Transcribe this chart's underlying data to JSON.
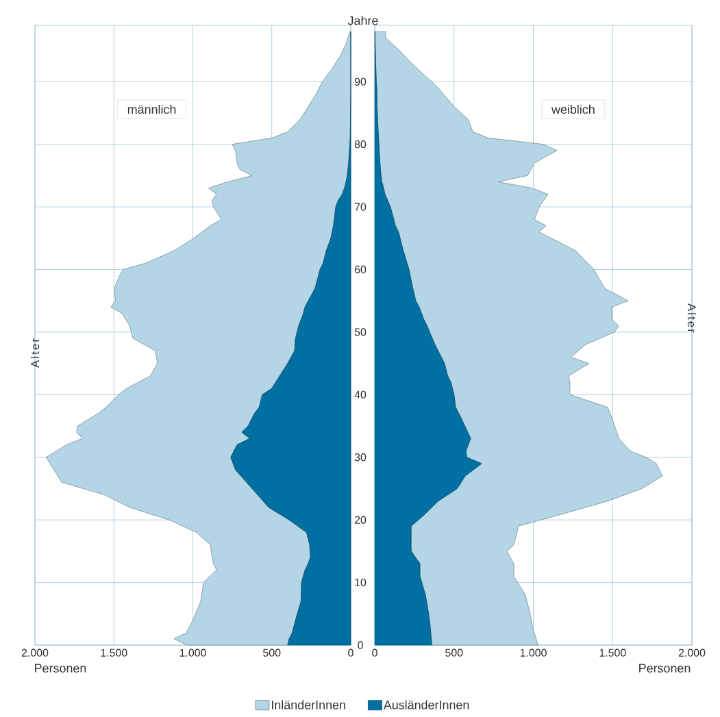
{
  "chart_data": [
    {
      "type": "area",
      "orientation": "horizontal",
      "stacked": true,
      "title": "männlich",
      "xlabel": "Personen",
      "ylabel": "Alter",
      "annotations": [
        "Jahre"
      ],
      "grid": true,
      "legend": "bottom",
      "x": [
        0,
        1,
        2,
        4,
        7,
        10,
        12,
        13,
        14,
        16,
        18,
        20,
        22,
        24,
        26,
        28,
        30,
        32,
        33,
        34,
        35,
        37,
        38,
        40,
        41,
        43,
        45,
        47,
        49,
        51,
        53,
        54,
        55,
        57,
        59,
        60,
        61,
        63,
        65,
        67,
        68,
        70,
        71,
        72,
        73,
        74,
        75,
        76,
        77,
        79,
        80,
        81,
        82,
        84,
        86,
        88,
        90,
        92,
        94,
        96,
        98
      ],
      "series": [
        {
          "name": "AusländerInnen",
          "color": "#0070a3",
          "values": [
            400,
            390,
            370,
            350,
            315,
            312,
            290,
            270,
            256,
            260,
            280,
            390,
            520,
            590,
            660,
            730,
            760,
            720,
            640,
            690,
            650,
            610,
            580,
            560,
            500,
            450,
            400,
            356,
            350,
            330,
            300,
            290,
            269,
            226,
            205,
            195,
            175,
            155,
            126,
            110,
            105,
            95,
            80,
            55,
            40,
            30,
            22,
            18,
            14,
            8,
            6,
            4,
            3,
            2,
            1,
            0,
            0,
            0,
            0,
            0,
            0
          ]
        },
        {
          "name": "InländerInnen",
          "color": "#b3d5e6",
          "values": [
            637,
            730,
            670,
            650,
            635,
            621,
            560,
            600,
            621,
            630,
            697,
            760,
            880,
            970,
            1170,
            1150,
            1170,
            1080,
            1060,
            1046,
            1080,
            990,
            970,
            910,
            920,
            820,
            824,
            881,
            1030,
            1070,
            1150,
            1229,
            1221,
            1271,
            1260,
            1245,
            1125,
            965,
            868,
            780,
            715,
            775,
            800,
            795,
            860,
            750,
            603,
            685,
            706,
            722,
            744,
            496,
            397,
            318,
            269,
            220,
            180,
            120,
            70,
            30,
            5
          ]
        }
      ],
      "xlim": [
        2000,
        0
      ],
      "xticks": [
        {
          "value": 2000,
          "label": "2.000"
        },
        {
          "value": 1500,
          "label": "1.500"
        },
        {
          "value": 1000,
          "label": "1.000"
        },
        {
          "value": 500,
          "label": "500"
        },
        {
          "value": 0,
          "label": "0"
        }
      ],
      "ylim": [
        0,
        99
      ],
      "yticks": [
        0,
        10,
        20,
        30,
        40,
        50,
        60,
        70,
        80,
        90
      ]
    },
    {
      "type": "area",
      "orientation": "horizontal",
      "stacked": true,
      "title": "weiblich",
      "xlabel": "Personen",
      "ylabel": "Alter",
      "grid": true,
      "tick_labels": "x",
      "x": [
        0,
        3,
        5,
        8,
        11,
        13,
        15,
        16,
        19,
        21,
        23,
        25,
        27,
        29,
        30,
        31,
        33,
        36,
        38,
        40,
        42,
        43,
        45,
        46,
        48,
        50,
        51,
        52,
        54,
        55,
        57,
        60,
        63,
        66,
        67,
        68,
        70,
        72,
        73,
        74,
        75,
        77,
        79,
        80,
        81,
        82,
        84,
        86,
        89,
        90,
        93,
        95,
        97,
        98
      ],
      "series": [
        {
          "color": "#0070a3",
          "values": [
            360,
            350,
            340,
            320,
            285,
            285,
            230,
            229,
            230,
            320,
            400,
            520,
            570,
            674,
            580,
            575,
            605,
            550,
            510,
            500,
            480,
            460,
            440,
            420,
            380,
            346,
            330,
            310,
            280,
            259,
            240,
            216,
            180,
            150,
            130,
            120,
            99,
            65,
            56,
            45,
            40,
            33,
            28,
            26,
            24,
            22,
            18,
            15,
            13,
            10,
            6,
            4,
            2,
            1
          ]
        },
        {
          "color": "#b3d5e6",
          "values": [
            670,
            644,
            640,
            630,
            592,
            592,
            604,
            648,
            677,
            872,
            1069,
            1165,
            1244,
            1102,
            1131,
            1036,
            935,
            950,
            959,
            731,
            750,
            763,
            912,
            816,
            950,
            1166,
            1208,
            1185,
            1215,
            1339,
            1210,
            1166,
            1086,
            887,
            950,
            887,
            938,
            1028,
            938,
            733,
            923,
            974,
            1121,
            1037,
            693,
            596,
            570,
            486,
            387,
            349,
            223,
            152,
            67,
            68
          ]
        }
      ],
      "xlim": [
        0,
        2000
      ],
      "xticks": [
        {
          "value": 0,
          "label": "0"
        },
        {
          "value": 500,
          "label": "500"
        },
        {
          "value": 1000,
          "label": "1.000"
        },
        {
          "value": 1500,
          "label": "1.500"
        },
        {
          "value": 2000,
          "label": "2.000"
        }
      ],
      "ylim": [
        0,
        99
      ],
      "yticks": [
        0,
        10,
        20,
        30,
        40,
        50,
        60,
        70,
        80,
        90
      ]
    }
  ]
}
